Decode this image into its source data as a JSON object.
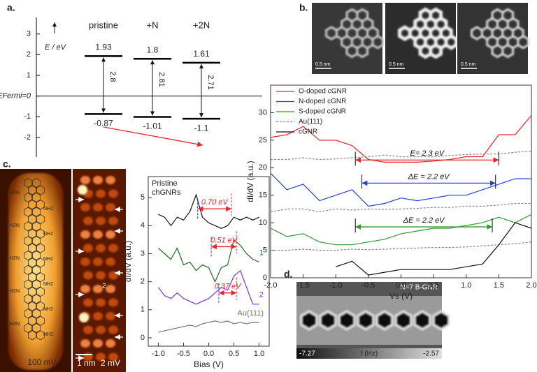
{
  "panel_labels": [
    "a.",
    "b.",
    "c.",
    "d."
  ],
  "chart_data": [
    {
      "type": "level",
      "ylabel": "E / eV",
      "ylim": [
        -2.95,
        3.8
      ],
      "yticks": [
        -2,
        -1,
        {
          "value": 0,
          "label": "EFermi=0"
        },
        1,
        2,
        3
      ],
      "categories": [
        "pristine",
        "+N",
        "+2N"
      ],
      "lumo": [
        1.93,
        1.8,
        1.61
      ],
      "homo": [
        -0.87,
        -1.01,
        -1.1
      ],
      "gaps": [
        2.8,
        2.81,
        2.71
      ]
    },
    {
      "type": "line",
      "xlabel": "Vs (V)",
      "ylabel": "dI/dV  (a.u.)",
      "xlim": [
        -2,
        2
      ],
      "ylim": [
        0,
        35
      ],
      "xticks": [
        {
          "value": -2,
          "label": "-2.0"
        },
        {
          "value": -1.5,
          "label": "-1.5"
        },
        {
          "value": -1,
          "label": "-1.0"
        },
        {
          "value": -0.5,
          "label": "-0.5"
        },
        {
          "value": 0,
          "label": "0.0"
        },
        {
          "value": 0.5,
          "label": "0.5"
        },
        {
          "value": 1,
          "label": "1.0"
        },
        {
          "value": 1.5,
          "label": "1.5"
        },
        {
          "value": 2,
          "label": "2.0"
        }
      ],
      "yticks": [
        0,
        5,
        10,
        15,
        20,
        25,
        30
      ],
      "x": [
        -2,
        -1.75,
        -1.5,
        -1.25,
        -1,
        -0.75,
        -0.5,
        -0.25,
        0,
        0.25,
        0.5,
        0.75,
        1,
        1.25,
        1.5,
        1.75,
        2
      ],
      "series": [
        {
          "name": "O-doped cGNR",
          "color": "#e8262b",
          "values": [
            25.5,
            26,
            27.5,
            25,
            25,
            24,
            21.5,
            21,
            21,
            21,
            21.2,
            21.5,
            22,
            22,
            26,
            26,
            29.5
          ]
        },
        {
          "name": "N-doped cGNR",
          "color": "#2540d8",
          "values": [
            19,
            16,
            17,
            14,
            15,
            16,
            13,
            13.5,
            14.5,
            14,
            14.5,
            15,
            15,
            16,
            17,
            18,
            18
          ]
        },
        {
          "name": "S-doped cGNR",
          "color": "#2e9a2e",
          "values": [
            9,
            7.5,
            8,
            6.5,
            6,
            6,
            6.5,
            7,
            8,
            8.5,
            9,
            9,
            9.5,
            10,
            11,
            10,
            11.5
          ]
        },
        {
          "name": "Au(111)",
          "color": "#888888",
          "dash": true,
          "values": [
            21.5,
            21.5,
            21.8,
            21.5,
            21.6,
            21.8,
            22,
            22.3,
            22,
            22,
            22,
            22.2,
            22.4,
            22.5,
            22.5,
            22.8,
            23
          ]
        },
        {
          "color": "#888888",
          "dash": true,
          "values": [
            12,
            12.5,
            12.5,
            12,
            12.5,
            12.3,
            12.5,
            12.4,
            12.5,
            12.6,
            12.8,
            12.8,
            13,
            13,
            13.2,
            13.5,
            13.5
          ]
        },
        {
          "color": "#888888",
          "dash": true,
          "values": [
            5,
            5,
            5.2,
            5,
            5,
            5.2,
            5.1,
            5.2,
            5.3,
            5.4,
            5.5,
            5.5,
            5.6,
            5.8,
            6,
            6.2,
            6.5
          ]
        },
        {
          "name": "cGNR",
          "color": "#111111",
          "values": [
            null,
            null,
            null,
            null,
            2,
            3,
            0.5,
            1,
            1.5,
            1.5,
            1.5,
            1.5,
            2,
            2.5,
            6,
            10,
            9
          ]
        }
      ],
      "annotations": [
        {
          "text": "E= 2.3 eV",
          "color": "#e8262b",
          "x_from": -0.7,
          "x_to": 1.5,
          "y": 21.4
        },
        {
          "text": "ΔE = 2.2 eV",
          "color": "#2540d8",
          "x_from": -0.6,
          "x_to": 1.45,
          "y": 17.2
        },
        {
          "text": "ΔE = 2.2 eV",
          "color": "#2e9a2e",
          "x_from": -0.7,
          "x_to": 1.4,
          "y": 9.25
        }
      ]
    },
    {
      "type": "line",
      "title": [
        "Pristine",
        "chGNRs"
      ],
      "xlabel": "Bias (V)",
      "ylabel": "dI/dV (a.u.)",
      "xlim": [
        -1.2,
        1.2
      ],
      "ylim": [
        -0.3,
        5.75
      ],
      "xticks": [
        {
          "value": -1,
          "label": "-1.0"
        },
        {
          "value": -0.5,
          "label": "-0.5"
        },
        {
          "value": 0,
          "label": "0.0"
        },
        {
          "value": 0.5,
          "label": "0.5"
        },
        {
          "value": 1,
          "label": "1.0"
        }
      ],
      "yticks": [
        0,
        1,
        2,
        3,
        4,
        5
      ],
      "x": [
        -1,
        -0.875,
        -0.75,
        -0.625,
        -0.5,
        -0.375,
        -0.25,
        -0.125,
        0,
        0.125,
        0.25,
        0.375,
        0.5,
        0.625,
        0.75,
        0.875,
        1
      ],
      "series": [
        {
          "color": "#111111",
          "values": [
            4.4,
            4.3,
            4.0,
            4.3,
            4.2,
            4.5,
            5.1,
            4.3,
            4.1,
            4.0,
            3.9,
            4.0,
            4.3,
            4.2,
            4.3,
            4.2,
            4.3
          ]
        },
        {
          "name": "1",
          "color": "#1f6b1f",
          "values": [
            3.2,
            3.0,
            2.8,
            3.2,
            2.6,
            2.7,
            2.4,
            2.6,
            2.5,
            2.0,
            2.5,
            2.6,
            3.5,
            3.3,
            3.0,
            2.8,
            2.7
          ]
        },
        {
          "name": "2",
          "color": "#7a2fd8",
          "values": [
            1.8,
            1.5,
            1.4,
            1.6,
            1.4,
            1.3,
            1.2,
            1.3,
            1.4,
            1.6,
            1.8,
            1.7,
            2.2,
            2.4,
            1.8,
            1.2,
            1.2
          ]
        },
        {
          "name": "Au(111)",
          "color": "#6a7a6a",
          "values": [
            0.2,
            0.25,
            0.3,
            0.35,
            0.4,
            0.45,
            0.4,
            0.5,
            0.55,
            0.6,
            0.55,
            0.6,
            0.5,
            0.55,
            0.5,
            0.55,
            0.55
          ]
        }
      ],
      "annotations": [
        {
          "text": "0.70 eV",
          "color": "#e8262b",
          "x_from": -0.22,
          "x_to": 0.45,
          "y": 4.6
        },
        {
          "text": "0.51 eV",
          "color": "#e8262b",
          "x_from": 0.05,
          "x_to": 0.55,
          "y": 3.25
        },
        {
          "text": "0.37 eV",
          "color": "#e8262b",
          "x_from": 0.2,
          "x_to": 0.55,
          "y": 1.6
        }
      ]
    }
  ],
  "images": {
    "b": {
      "scale_bars": [
        "0.5 nm",
        "0.5 nm",
        "0.5 nm"
      ]
    },
    "c": {
      "left_labels": [
        "H2N",
        "H2N",
        "H2N",
        "H2N",
        "H2N"
      ],
      "right_labels": [
        "NH2",
        "NH2",
        "NH2",
        "NH2",
        "NH2",
        "NH2"
      ],
      "scale_bar": "1 nm",
      "bias": [
        "100 mV",
        "2 mV"
      ],
      "marker": "2"
    },
    "d": {
      "title": "N=7 B-GNR",
      "min": -7.27,
      "unit": "f (Hz)",
      "max": -2.57
    }
  }
}
